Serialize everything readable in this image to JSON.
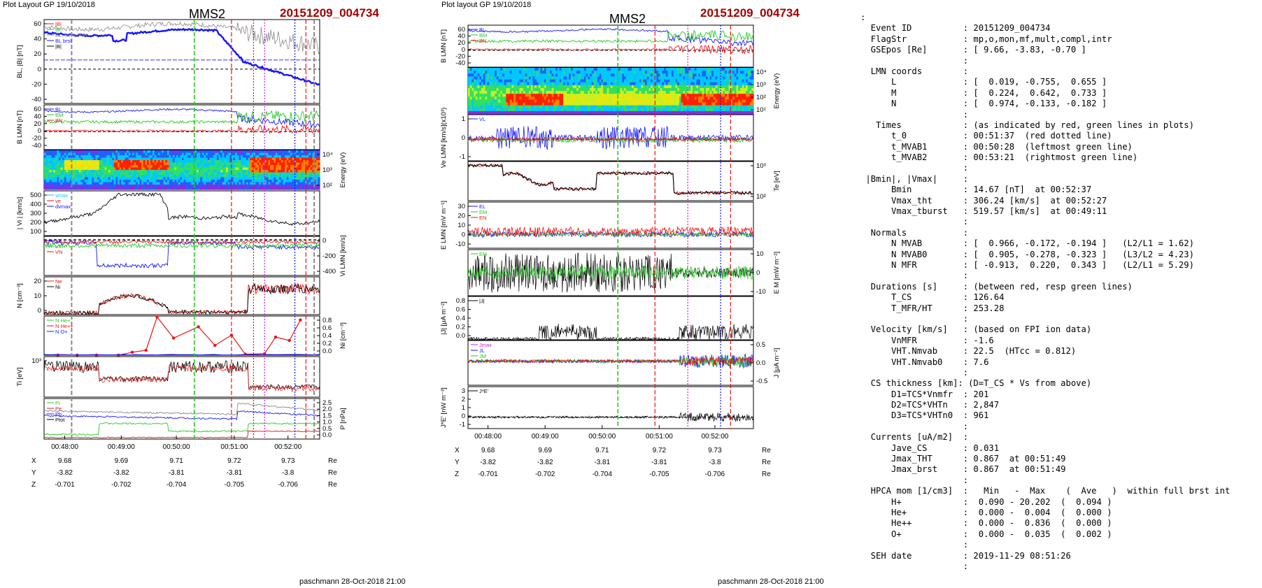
{
  "header": {
    "left_title": "Plot Layout GP 19/10/2018",
    "right_title": "Plot layout GP 19/10/2018",
    "spacecraft": "MMS2",
    "event": "20151209_004734",
    "footer": "paschmann 28-Oct-2018 21:00"
  },
  "colors": {
    "accent_event": "#a00000",
    "blue": "#1515ff",
    "green": "#22cc22",
    "red": "#ee1111",
    "magenta": "#d020d0"
  },
  "time_ticks": [
    "00:48:00",
    "00:49:00",
    "00:50:00",
    "00:51:00",
    "00:52:00"
  ],
  "position_table": {
    "X": [
      "9.68",
      "9.69",
      "9.71",
      "9.72",
      "9.73"
    ],
    "Y": [
      "-3.82",
      "-3.82",
      "-3.81",
      "-3.81",
      "-3.8"
    ],
    "Z": [
      "-0.701",
      "-0.702",
      "-0.704",
      "-0.705",
      "-0.706"
    ],
    "unit": "Re"
  },
  "chart_data": [
    {
      "type": "line",
      "panel": "BL |B|",
      "ylabel": "BL, |B| [nT]",
      "ylim": [
        -45,
        65
      ],
      "ticks": [
        "60",
        "40",
        "20",
        "0",
        "-20",
        "-40"
      ],
      "legend": [
        "|B|",
        "BL",
        "BL, 50% of BL",
        "BL brst",
        "|B|"
      ]
    },
    {
      "type": "line",
      "panel": "B LMN",
      "ylabel": "B LMN [nT]",
      "ylim": [
        -40,
        60
      ],
      "ticks": [
        "60",
        "40",
        "20",
        "0",
        "-20",
        "-40"
      ],
      "legend": [
        "BL",
        "BM",
        "BN"
      ]
    },
    {
      "type": "heatmap",
      "panel": "ion spectrogram",
      "ylabel": "Energy (eV)",
      "ticks": [
        "10⁴",
        "10³",
        "10²"
      ]
    },
    {
      "type": "line",
      "panel": "|Vi|",
      "ylabel": "| Vi | [km/s]",
      "ylim": [
        0,
        500
      ],
      "ticks": [
        "500",
        "400",
        "300",
        "200",
        "100"
      ],
      "legend": [
        "vmax",
        "ve",
        "dvmax"
      ]
    },
    {
      "type": "line",
      "panel": "Vi LMN",
      "ylabel": "Vi LMN [km/s]",
      "ticks": [
        "0",
        "-200",
        "-400"
      ],
      "legend": [
        "VL",
        "VM",
        "VN"
      ]
    },
    {
      "type": "line",
      "panel": "N",
      "ylabel": "N [cm⁻³]",
      "ylim": [
        0,
        20
      ],
      "ticks": [
        "20",
        "10",
        "0"
      ],
      "legend": [
        "Ne",
        "Ni"
      ]
    },
    {
      "type": "line",
      "panel": "Ni minor",
      "ylabel": "Ni [cm⁻³]",
      "ylim": [
        0,
        0.8
      ],
      "ticks": [
        "0.8",
        "0.6",
        "0.4",
        "0.2",
        "0.0"
      ],
      "legend": [
        "N  He+",
        "N  He++",
        "N  O+"
      ],
      "series": [
        {
          "name": "N  He++",
          "x": [
            0.05,
            0.12,
            0.19,
            0.27,
            0.32,
            0.37,
            0.41,
            0.47,
            0.56,
            0.62,
            0.68,
            0.73,
            0.8,
            0.84,
            0.89,
            0.93
          ],
          "y": [
            0.0,
            0.0,
            0.0,
            0.0,
            0.06,
            0.1,
            0.78,
            0.35,
            0.58,
            0.2,
            0.41,
            0.02,
            0.03,
            0.37,
            0.3,
            0.72
          ]
        }
      ]
    },
    {
      "type": "line",
      "panel": "Ti",
      "ylabel": "Ti [eV]",
      "ticks": [
        "10³"
      ]
    },
    {
      "type": "line",
      "panel": "P",
      "ylabel": "P [nPa]",
      "ylim": [
        0,
        2.5
      ],
      "ticks": [
        "2.5",
        "2.0",
        "1.5",
        "1.0",
        "0.5",
        "0.0"
      ],
      "legend": [
        "Pi",
        "Pe",
        "Pb",
        "Ptot"
      ]
    },
    {
      "type": "line",
      "panel": "B LMN (right)",
      "ylabel": "B LMN [nT]",
      "ticks": [
        "60",
        "40",
        "20",
        "0",
        "-20",
        "-40"
      ],
      "legend": [
        "BL",
        "BM",
        "BN"
      ]
    },
    {
      "type": "heatmap",
      "panel": "electron spectrogram",
      "ylabel": "Energy (eV)",
      "ticks": [
        "10⁴",
        "10³",
        "10²",
        "10¹"
      ]
    },
    {
      "type": "line",
      "panel": "Ve LMN",
      "ylabel": "Ve LMN [km/s](x10³)",
      "ticks": [
        "1",
        "0",
        "-1"
      ],
      "legend": [
        "VL"
      ]
    },
    {
      "type": "line",
      "panel": "Te",
      "ylabel": "Te [eV]",
      "ticks": [
        "10³",
        "10²"
      ]
    },
    {
      "type": "line",
      "panel": "E LMN",
      "ylabel": "E LMN [mV m⁻¹]",
      "ticks": [
        "30",
        "20",
        "10",
        "0",
        "-10"
      ],
      "legend": [
        "EL",
        "EM",
        "EN"
      ]
    },
    {
      "type": "line",
      "panel": "E M",
      "ylabel": "E M [mW m⁻²]",
      "ticks": [
        "10",
        "0",
        "-10"
      ],
      "legend": [
        "EM"
      ]
    },
    {
      "type": "line",
      "panel": "|J|",
      "ylabel": "|J| [μA m⁻²]",
      "ylim": [
        0,
        0.8
      ],
      "ticks": [
        "0.8",
        "0.6",
        "0.4",
        "0.2",
        "0.0"
      ],
      "legend": [
        "|J|"
      ]
    },
    {
      "type": "line",
      "panel": "J LMN",
      "ylabel": "J [μA m⁻²]",
      "ticks": [
        "0.5",
        "0.0",
        "-0.5"
      ],
      "legend": [
        "Jmax",
        "JL",
        "JM"
      ]
    },
    {
      "type": "line",
      "panel": "J*E'",
      "ylabel": "J*E' [nW m⁻³]",
      "ticks": [
        "3",
        "2",
        "1",
        "0",
        "-1"
      ],
      "legend": [
        "J*E'"
      ]
    }
  ],
  "info_lines": [
    ":",
    "  Event ID          : 20151209_004734",
    "  FlagStr           : mp,o,mon,mf,mult,compl,intr",
    "  GSEpos [Re]       : [ 9.66, -3.83, -0.70 ]",
    "                    :",
    "  LMN coords        :",
    "      L             : [  0.019, -0.755,  0.655 ]",
    "      M             : [  0.224,  0.642,  0.733 ]",
    "      N             : [  0.974, -0.133, -0.182 ]",
    "                    :",
    "   Times            : (as indicated by red, green lines in plots)",
    "      t_0           : 00:51:37  (red dotted line)",
    "      t_MVAB1       : 00:50:28  (leftmost green line)",
    "      t_MVAB2       : 00:53:21  (rightmost green line)",
    "                    :",
    " |Bmin|, |Vmax|     :",
    "      Bmin          : 14.67 [nT]  at 00:52:37",
    "      Vmax_tht      : 306.24 [km/s]  at 00:52:27",
    "      Vmax_tburst   : 519.57 [km/s]  at 00:49:11",
    "                    :",
    "  Normals           :",
    "      N MVAB        : [  0.966, -0.172, -0.194 ]   (L2/L1 = 1.62)",
    "      N MVAB0       : [  0.905, -0.278, -0.323 ]   (L3/L2 = 4.23)",
    "      N MFR         : [ -0.913,  0.220,  0.343 ]   (L2/L1 = 5.29)",
    "                    :",
    "  Durations [s]     : (between red, resp green lines)",
    "      T_CS          : 126.64",
    "      T_MFR/HT      : 253.28",
    "                    :",
    "  Velocity [km/s]   : (based on FPI ion data)",
    "      VnMFR         : -1.6",
    "      VHT.Nmvab     : 22.5  (HTcc = 0.812)",
    "      VHT.Nmvab0    : 7.6",
    "                    :",
    "  CS thickness [km]: (D=T_CS * Vs from above)",
    "      D1=TCS*Vnmfr  : 201",
    "      D2=TCS*VHTn   : 2,847",
    "      D3=TCS*VHTn0  : 961",
    "                    :",
    "  Currents [uA/m2]  :",
    "      Jave_CS       : 0.031",
    "      Jmax_THT      : 0.867  at 00:51:49",
    "      Jmax_brst     : 0.867  at 00:51:49",
    "                    :",
    "  HPCA mom [1/cm3]  :   Min   -  Max    (  Ave   )  within full brst int",
    "      H+            :  0.090 - 20.202  (  0.094 )",
    "      He+           :  0.000 -  0.004  (  0.000 )",
    "      He++          :  0.000 -  0.836  (  0.000 )",
    "      O+            :  0.000 -  0.035  (  0.002 )",
    "                    :",
    "  SEH date          : 2019-11-29 08:51:26",
    "                    :"
  ]
}
